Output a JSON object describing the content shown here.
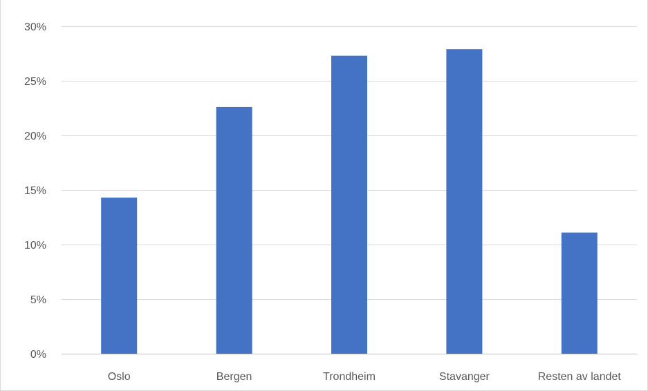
{
  "chart_data": {
    "type": "bar",
    "categories": [
      "Oslo",
      "Bergen",
      "Trondheim",
      "Stavanger",
      "Resten av landet"
    ],
    "values": [
      14.3,
      22.6,
      27.3,
      27.9,
      11.1
    ],
    "ylim": [
      0,
      30
    ],
    "yticks": [
      0,
      5,
      10,
      15,
      20,
      25,
      30
    ],
    "ytick_labels": [
      "0%",
      "5%",
      "10%",
      "15%",
      "20%",
      "25%",
      "30%"
    ],
    "grid": true,
    "legend": "none",
    "colors": {
      "bar": "#4472c4",
      "grid": "#d9d9d9",
      "axis": "#bfbfbf",
      "label": "#595959"
    }
  }
}
